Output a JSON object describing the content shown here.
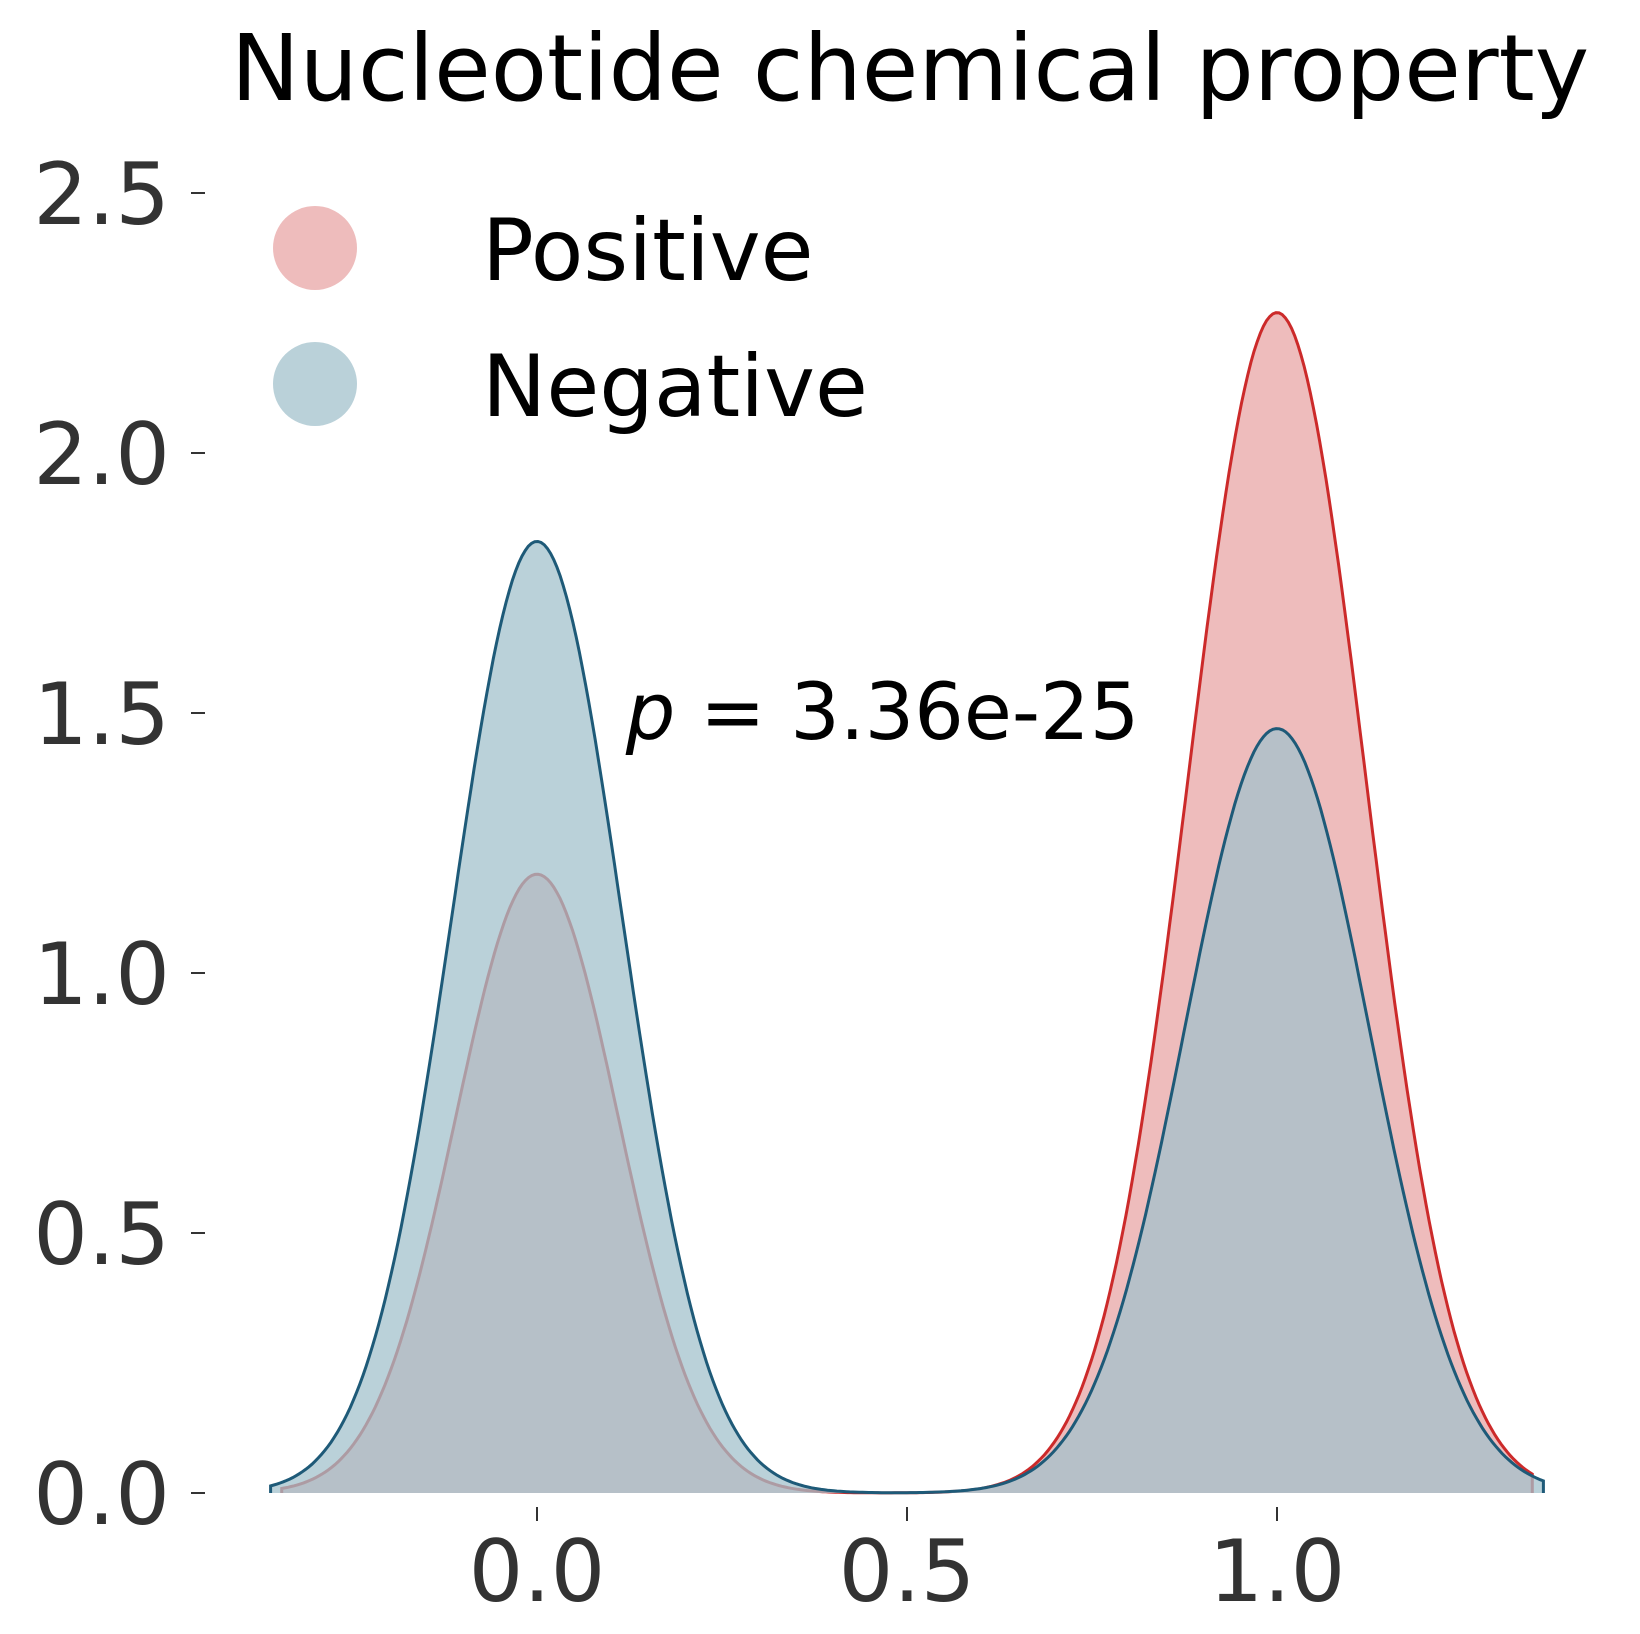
{
  "chart_data": {
    "type": "area",
    "title": "Nucleotide chemical property",
    "xlabel": "",
    "ylabel": "",
    "xlim": [
      -0.36,
      1.36
    ],
    "ylim": [
      0,
      2.6
    ],
    "x_ticks": [
      0.0,
      0.5,
      1.0
    ],
    "x_tick_labels": [
      "0.0",
      "0.5",
      "1.0"
    ],
    "y_ticks": [
      0.0,
      0.5,
      1.0,
      1.5,
      2.0,
      2.5
    ],
    "y_tick_labels": [
      "0.0",
      "0.5",
      "1.0",
      "1.5",
      "2.0",
      "2.5"
    ],
    "grid": false,
    "legend_position": "top-left",
    "annotation": {
      "prefix": "p",
      "text": " = 3.36e-25",
      "x": 0.12,
      "y": 1.45
    },
    "series": [
      {
        "name": "Positive",
        "fill_color": "#e8a5a5",
        "line_color": "#cc2a2a",
        "fill_opacity": 0.75,
        "x_range": [
          -0.345,
          1.345
        ],
        "peaks": [
          {
            "center": 0.0,
            "height": 1.19,
            "sigma": 0.11
          },
          {
            "center": 1.0,
            "height": 2.27,
            "sigma": 0.12
          }
        ]
      },
      {
        "name": "Negative",
        "fill_color": "#a3c2cc",
        "line_color": "#1e5a78",
        "fill_opacity": 0.75,
        "x_range": [
          -0.36,
          1.36
        ],
        "peaks": [
          {
            "center": 0.0,
            "height": 1.83,
            "sigma": 0.115
          },
          {
            "center": 1.0,
            "height": 1.47,
            "sigma": 0.125
          }
        ]
      }
    ]
  }
}
